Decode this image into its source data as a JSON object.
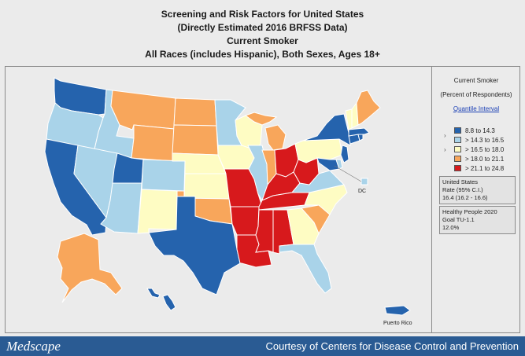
{
  "title": {
    "line1": "Screening and Risk Factors for United States",
    "line2": "(Directly Estimated 2016 BRFSS Data)",
    "line3": "Current Smoker",
    "line4": "All Races (includes Hispanic), Both Sexes, Ages 18+"
  },
  "legend": {
    "title": "Current Smoker",
    "subtitle": "(Percent of Respondents)",
    "link": "Quantile Interval",
    "bins": [
      {
        "label": "8.8  to  14.3",
        "color": "#2563ad"
      },
      {
        "label": "> 14.3  to  16.5",
        "color": "#a9d3e9"
      },
      {
        "label": "> 16.5  to  18.0",
        "color": "#fefcc3"
      },
      {
        "label": "> 18.0  to  21.1",
        "color": "#f8a65b"
      },
      {
        "label": "> 21.1  to  24.8",
        "color": "#d7191c"
      }
    ],
    "us_box": {
      "line1": "United States",
      "line2": "Rate (95% C.I.)",
      "line3": "16.4  (16.2 - 16.6)"
    },
    "hp_box": {
      "line1": "Healthy People 2020",
      "line2": "Goal TU-1.1",
      "line3": "12.0%"
    }
  },
  "map_labels": {
    "dc": "DC",
    "pr": "Puerto Rico"
  },
  "footer": {
    "logo": "Medscape",
    "credit": "Courtesy of Centers for Disease Control and Prevention"
  },
  "colors": {
    "q1": "#2563ad",
    "q2": "#a9d3e9",
    "q3": "#fefcc3",
    "q4": "#f8a65b",
    "q5": "#d7191c"
  }
}
